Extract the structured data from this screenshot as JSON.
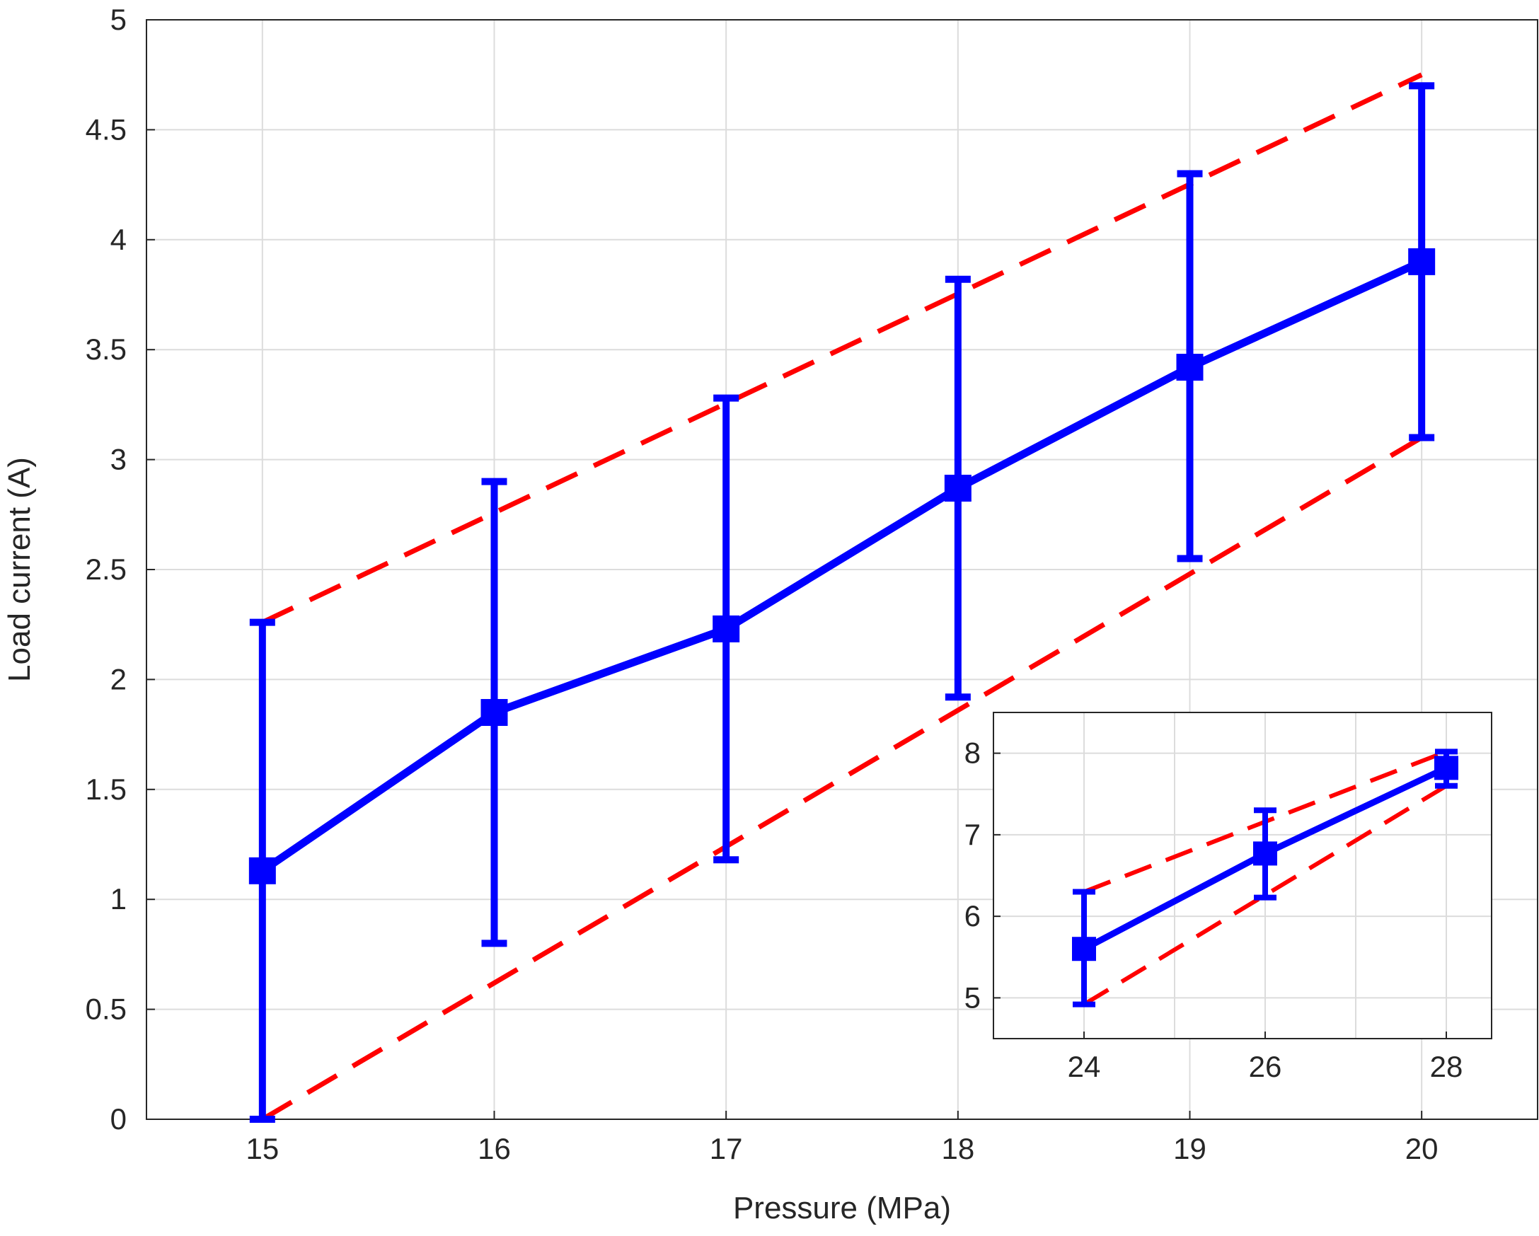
{
  "chart_data": [
    {
      "type": "line",
      "title": "",
      "xlabel": "Pressure (MPa)",
      "ylabel": "Load current (A)",
      "xlim": [
        14.5,
        20.5
      ],
      "ylim": [
        0,
        5
      ],
      "xticks": [
        15,
        16,
        17,
        18,
        19,
        20
      ],
      "xtick_labels": [
        "15",
        "16",
        "17",
        "18",
        "19",
        "20"
      ],
      "yticks": [
        0,
        0.5,
        1,
        1.5,
        2,
        2.5,
        3,
        3.5,
        4,
        4.5,
        5
      ],
      "ytick_labels": [
        "0",
        "0.5",
        "1",
        "1.5",
        "2",
        "2.5",
        "3",
        "3.5",
        "4",
        "4.5",
        "5"
      ],
      "grid": true,
      "series": [
        {
          "kind": "errorbar",
          "color": "#0000ff",
          "marker": "square",
          "x": [
            15,
            16,
            17,
            18,
            19,
            20
          ],
          "y": [
            1.13,
            1.85,
            2.23,
            2.87,
            3.42,
            3.9
          ],
          "lower": [
            0.0,
            0.8,
            1.18,
            1.92,
            2.55,
            3.1
          ],
          "upper": [
            2.26,
            2.9,
            3.28,
            3.82,
            4.3,
            4.7
          ]
        },
        {
          "kind": "bound",
          "color": "#ff0000",
          "style": "dashed",
          "x": [
            15,
            20
          ],
          "y": [
            2.26,
            4.75
          ]
        },
        {
          "kind": "bound",
          "color": "#ff0000",
          "style": "dashed",
          "x": [
            15,
            20
          ],
          "y": [
            0.0,
            3.1
          ]
        }
      ]
    },
    {
      "type": "line",
      "placement": "inset-bottom-right",
      "title": "",
      "xlabel": "",
      "ylabel": "",
      "xlim": [
        23,
        28.5
      ],
      "ylim": [
        4.5,
        8.5
      ],
      "xticks": [
        24,
        26,
        28
      ],
      "xtick_labels": [
        "24",
        "26",
        "28"
      ],
      "xgrid": [
        24,
        25,
        26,
        27,
        28
      ],
      "yticks": [
        5,
        6,
        7,
        8
      ],
      "ytick_labels": [
        "5",
        "6",
        "7",
        "8"
      ],
      "grid": true,
      "series": [
        {
          "kind": "errorbar",
          "color": "#0000ff",
          "marker": "square",
          "x": [
            24,
            26,
            28
          ],
          "y": [
            5.6,
            6.77,
            7.82
          ],
          "lower": [
            4.92,
            6.23,
            7.6
          ],
          "upper": [
            6.3,
            7.3,
            8.02
          ]
        },
        {
          "kind": "bound",
          "color": "#ff0000",
          "style": "dashed",
          "x": [
            24,
            28
          ],
          "y": [
            6.3,
            8.02
          ]
        },
        {
          "kind": "bound",
          "color": "#ff0000",
          "style": "dashed",
          "x": [
            24,
            28
          ],
          "y": [
            4.92,
            7.6
          ]
        }
      ]
    }
  ]
}
